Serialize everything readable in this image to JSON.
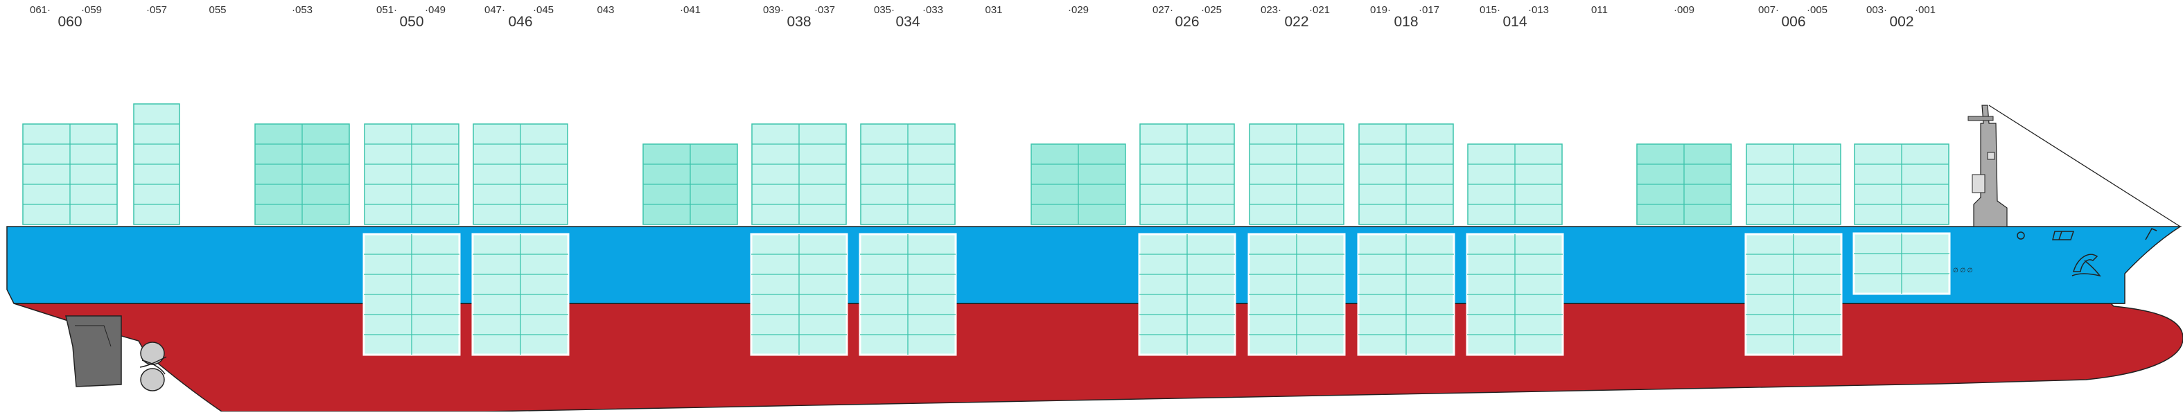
{
  "colors": {
    "hull_lower": "#c0232a",
    "hull_upper": "#0aa4e4",
    "container_light": "#c8f5ee",
    "container_dark": "#9deadc",
    "container_line": "#3cc4ac",
    "outline": "#222222",
    "machinery": "#777777"
  },
  "bay_labels": {
    "odd": [
      {
        "text": "061·",
        "bay": 61
      },
      {
        "text": "·059",
        "bay": 59
      },
      {
        "text": "·057",
        "bay": 57
      },
      {
        "text": "055",
        "bay": 55
      },
      {
        "text": "·053",
        "bay": 53
      },
      {
        "text": "051·",
        "bay": 51
      },
      {
        "text": "·049",
        "bay": 49
      },
      {
        "text": "047·",
        "bay": 47
      },
      {
        "text": "·045",
        "bay": 45
      },
      {
        "text": "043",
        "bay": 43
      },
      {
        "text": "·041",
        "bay": 41
      },
      {
        "text": "039·",
        "bay": 39
      },
      {
        "text": "·037",
        "bay": 37
      },
      {
        "text": "035·",
        "bay": 35
      },
      {
        "text": "·033",
        "bay": 33
      },
      {
        "text": "031",
        "bay": 31
      },
      {
        "text": "·029",
        "bay": 29
      },
      {
        "text": "027·",
        "bay": 27
      },
      {
        "text": "·025",
        "bay": 25
      },
      {
        "text": "023·",
        "bay": 23
      },
      {
        "text": "·021",
        "bay": 21
      },
      {
        "text": "019·",
        "bay": 19
      },
      {
        "text": "·017",
        "bay": 17
      },
      {
        "text": "015·",
        "bay": 15
      },
      {
        "text": "·013",
        "bay": 13
      },
      {
        "text": "011",
        "bay": 11
      },
      {
        "text": "·009",
        "bay": 9
      },
      {
        "text": "007·",
        "bay": 7
      },
      {
        "text": "·005",
        "bay": 5
      },
      {
        "text": "003·",
        "bay": 3
      },
      {
        "text": "·001",
        "bay": 1
      }
    ],
    "even": [
      {
        "text": "060",
        "bay": 60
      },
      {
        "text": "050",
        "bay": 50
      },
      {
        "text": "046",
        "bay": 46
      },
      {
        "text": "038",
        "bay": 38
      },
      {
        "text": "034",
        "bay": 34
      },
      {
        "text": "026",
        "bay": 26
      },
      {
        "text": "022",
        "bay": 22
      },
      {
        "text": "018",
        "bay": 18
      },
      {
        "text": "014",
        "bay": 14
      },
      {
        "text": "006",
        "bay": 6
      },
      {
        "text": "002",
        "bay": 2
      }
    ]
  },
  "deck_stacks": [
    {
      "bay": 60,
      "tiers": 5,
      "rows": 2,
      "shade": "light"
    },
    {
      "bay": 57,
      "tiers": 6,
      "rows": 1,
      "shade": "light"
    },
    {
      "bay": 53,
      "tiers": 5,
      "rows": 2,
      "shade": "dark"
    },
    {
      "bay": 50,
      "tiers": 5,
      "rows": 2,
      "shade": "light"
    },
    {
      "bay": 46,
      "tiers": 5,
      "rows": 2,
      "shade": "light"
    },
    {
      "bay": 41,
      "tiers": 4,
      "rows": 2,
      "shade": "dark"
    },
    {
      "bay": 38,
      "tiers": 5,
      "rows": 2,
      "shade": "light"
    },
    {
      "bay": 34,
      "tiers": 5,
      "rows": 2,
      "shade": "light"
    },
    {
      "bay": 29,
      "tiers": 4,
      "rows": 2,
      "shade": "dark"
    },
    {
      "bay": 26,
      "tiers": 5,
      "rows": 2,
      "shade": "light"
    },
    {
      "bay": 22,
      "tiers": 5,
      "rows": 2,
      "shade": "light"
    },
    {
      "bay": 18,
      "tiers": 5,
      "rows": 2,
      "shade": "light"
    },
    {
      "bay": 14,
      "tiers": 4,
      "rows": 2,
      "shade": "light"
    },
    {
      "bay": 9,
      "tiers": 4,
      "rows": 2,
      "shade": "dark"
    },
    {
      "bay": 6,
      "tiers": 4,
      "rows": 2,
      "shade": "light"
    },
    {
      "bay": 2,
      "tiers": 4,
      "rows": 2,
      "shade": "light"
    }
  ],
  "hold_stacks": [
    {
      "bay": 50,
      "tiers": 6
    },
    {
      "bay": 46,
      "tiers": 6
    },
    {
      "bay": 38,
      "tiers": 6
    },
    {
      "bay": 34,
      "tiers": 6
    },
    {
      "bay": 26,
      "tiers": 6
    },
    {
      "bay": 22,
      "tiers": 6
    },
    {
      "bay": 18,
      "tiers": 6
    },
    {
      "bay": 14,
      "tiers": 6
    },
    {
      "bay": 6,
      "tiers": 6
    },
    {
      "bay": 2,
      "tiers": 3
    }
  ],
  "hull_marks": {
    "forward_draft_text": "∅ ∅ ∅"
  }
}
